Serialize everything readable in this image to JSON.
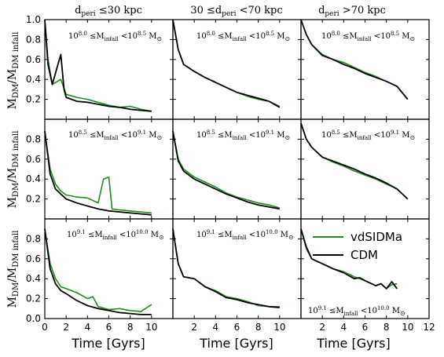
{
  "chart_data": {
    "type": "line",
    "layout": "3x3 grid of panels with shared axes",
    "colors": {
      "vdSIDMa": "#1e8c1e",
      "CDM": "#000000"
    },
    "column_titles": [
      "d_peri ≤30 kpc",
      "30 ≤d_peri <70 kpc",
      "d_peri >70 kpc"
    ],
    "row_ylabels": [
      "M_DM/M_DM infall",
      "M_DM/M_DM infall",
      "M_DM/M_DM infall"
    ],
    "row_annotations": [
      "10^8.0 ≤M_infall <10^8.5 M_⊙",
      "10^8.5 ≤M_infall <10^9.1 M_⊙",
      "10^9.1 ≤M_infall <10^10.0 M_⊙"
    ],
    "xlabel": "Time [Gyrs]",
    "xlim": [
      0,
      12
    ],
    "ylim": [
      0,
      1.0
    ],
    "grid": false,
    "x_ticks": {
      "col0": [
        "0",
        "2",
        "4",
        "6",
        "8",
        "10"
      ],
      "col1": [
        "2",
        "4",
        "6",
        "8",
        "10"
      ],
      "col2": [
        "2",
        "4",
        "6",
        "8",
        "10",
        "12"
      ]
    },
    "y_ticks": {
      "row0": [
        "0.2",
        "0.4",
        "0.6",
        "0.8",
        "1.0"
      ],
      "row1": [
        "0.2",
        "0.4",
        "0.6",
        "0.8"
      ],
      "row2": [
        "0.0",
        "0.2",
        "0.4",
        "0.6",
        "0.8"
      ]
    },
    "legend": {
      "location": "bottom-right panel, upper-left",
      "entries": [
        "vdSIDMa",
        "CDM"
      ]
    },
    "panels": [
      {
        "row": 0,
        "col": 0,
        "series": [
          {
            "name": "vdSIDMa",
            "x": [
              0,
              0.3,
              0.7,
              1.5,
              2,
              3,
              4,
              5,
              6,
              7,
              8,
              9,
              10
            ],
            "y": [
              1.0,
              0.6,
              0.35,
              0.4,
              0.25,
              0.22,
              0.2,
              0.17,
              0.14,
              0.12,
              0.13,
              0.1,
              0.08
            ]
          },
          {
            "name": "CDM",
            "x": [
              0,
              0.3,
              0.7,
              1.5,
              1.8,
              2,
              3,
              4,
              5,
              6,
              7,
              8,
              9,
              10
            ],
            "y": [
              1.0,
              0.55,
              0.35,
              0.65,
              0.3,
              0.22,
              0.18,
              0.17,
              0.15,
              0.13,
              0.12,
              0.1,
              0.09,
              0.08
            ]
          }
        ]
      },
      {
        "row": 0,
        "col": 1,
        "series": [
          {
            "name": "vdSIDMa",
            "x": [
              0,
              0.5,
              1,
              2,
              3,
              4,
              5,
              6,
              7,
              8,
              9,
              10
            ],
            "y": [
              1.0,
              0.7,
              0.55,
              0.48,
              0.42,
              0.37,
              0.32,
              0.27,
              0.23,
              0.2,
              0.18,
              0.13
            ]
          },
          {
            "name": "CDM",
            "x": [
              0,
              0.5,
              1,
              2,
              3,
              4,
              5,
              6,
              7,
              8,
              9,
              10
            ],
            "y": [
              1.0,
              0.7,
              0.55,
              0.48,
              0.42,
              0.37,
              0.32,
              0.27,
              0.24,
              0.21,
              0.18,
              0.12
            ]
          }
        ]
      },
      {
        "row": 0,
        "col": 2,
        "series": [
          {
            "name": "vdSIDMa",
            "x": [
              0,
              0.5,
              1,
              2,
              3,
              4,
              5,
              6,
              7,
              8,
              9,
              10
            ],
            "y": [
              1.0,
              0.85,
              0.75,
              0.65,
              0.6,
              0.57,
              0.52,
              0.47,
              0.43,
              0.38,
              0.33,
              0.2
            ]
          },
          {
            "name": "CDM",
            "x": [
              0,
              0.5,
              1,
              2,
              3,
              4,
              5,
              6,
              7,
              8,
              9,
              10
            ],
            "y": [
              1.0,
              0.85,
              0.75,
              0.64,
              0.6,
              0.55,
              0.51,
              0.46,
              0.42,
              0.38,
              0.33,
              0.2
            ]
          }
        ]
      },
      {
        "row": 1,
        "col": 0,
        "series": [
          {
            "name": "vdSIDMa",
            "x": [
              0,
              0.5,
              1,
              1.5,
              2,
              3,
              4,
              5,
              5.5,
              6,
              6.3,
              7,
              8,
              9,
              10
            ],
            "y": [
              0.88,
              0.5,
              0.35,
              0.28,
              0.24,
              0.22,
              0.21,
              0.16,
              0.4,
              0.42,
              0.1,
              0.09,
              0.08,
              0.07,
              0.06
            ]
          },
          {
            "name": "CDM",
            "x": [
              0,
              0.5,
              1,
              1.5,
              2,
              3,
              4,
              5,
              6,
              7,
              8,
              9,
              10
            ],
            "y": [
              0.88,
              0.45,
              0.3,
              0.25,
              0.2,
              0.16,
              0.13,
              0.1,
              0.08,
              0.07,
              0.06,
              0.05,
              0.04
            ]
          }
        ]
      },
      {
        "row": 1,
        "col": 1,
        "series": [
          {
            "name": "vdSIDMa",
            "x": [
              0,
              0.5,
              1,
              2,
              3,
              4,
              5,
              6,
              7,
              8,
              9,
              10
            ],
            "y": [
              0.88,
              0.6,
              0.5,
              0.42,
              0.37,
              0.32,
              0.26,
              0.22,
              0.19,
              0.16,
              0.14,
              0.11
            ]
          },
          {
            "name": "CDM",
            "x": [
              0,
              0.5,
              1,
              2,
              3,
              4,
              5,
              6,
              7,
              8,
              9,
              10
            ],
            "y": [
              0.88,
              0.58,
              0.48,
              0.4,
              0.35,
              0.3,
              0.25,
              0.21,
              0.17,
              0.14,
              0.12,
              0.1
            ]
          }
        ]
      },
      {
        "row": 1,
        "col": 2,
        "series": [
          {
            "name": "vdSIDMa",
            "x": [
              0,
              0.5,
              1,
              2,
              3,
              4,
              5,
              6,
              7,
              8,
              9,
              10
            ],
            "y": [
              0.96,
              0.8,
              0.72,
              0.62,
              0.57,
              0.53,
              0.48,
              0.44,
              0.4,
              0.35,
              0.3,
              0.2
            ]
          },
          {
            "name": "CDM",
            "x": [
              0,
              0.5,
              1,
              2,
              3,
              4,
              5,
              6,
              7,
              8,
              9,
              10
            ],
            "y": [
              0.96,
              0.8,
              0.72,
              0.62,
              0.58,
              0.54,
              0.5,
              0.45,
              0.41,
              0.36,
              0.3,
              0.2
            ]
          }
        ]
      },
      {
        "row": 2,
        "col": 0,
        "series": [
          {
            "name": "vdSIDMa",
            "x": [
              0,
              0.5,
              1,
              1.5,
              2,
              3,
              4,
              4.5,
              5,
              6,
              7,
              8,
              9,
              10
            ],
            "y": [
              0.9,
              0.55,
              0.4,
              0.32,
              0.3,
              0.26,
              0.2,
              0.22,
              0.12,
              0.09,
              0.1,
              0.08,
              0.07,
              0.14
            ]
          },
          {
            "name": "CDM",
            "x": [
              0,
              0.5,
              1,
              1.5,
              2,
              3,
              4,
              5,
              6,
              7,
              8,
              9,
              10
            ],
            "y": [
              0.9,
              0.5,
              0.35,
              0.28,
              0.25,
              0.18,
              0.13,
              0.1,
              0.08,
              0.06,
              0.05,
              0.04,
              0.04
            ]
          }
        ]
      },
      {
        "row": 2,
        "col": 1,
        "series": [
          {
            "name": "vdSIDMa",
            "x": [
              0,
              0.5,
              1,
              2,
              3,
              4,
              5,
              6,
              7,
              8,
              9,
              10
            ],
            "y": [
              0.9,
              0.55,
              0.42,
              0.4,
              0.32,
              0.28,
              0.22,
              0.2,
              0.17,
              0.13,
              0.12,
              0.12
            ]
          },
          {
            "name": "CDM",
            "x": [
              0,
              0.5,
              1,
              2,
              3,
              4,
              5,
              6,
              7,
              8,
              9,
              10
            ],
            "y": [
              0.9,
              0.55,
              0.42,
              0.4,
              0.32,
              0.27,
              0.21,
              0.19,
              0.16,
              0.14,
              0.12,
              0.11
            ]
          }
        ]
      },
      {
        "row": 2,
        "col": 2,
        "series": [
          {
            "name": "vdSIDMa",
            "x": [
              0,
              0.5,
              1,
              2,
              3,
              4,
              5,
              6,
              7,
              7.5,
              8,
              8.5,
              9
            ],
            "y": [
              0.9,
              0.7,
              0.6,
              0.55,
              0.5,
              0.47,
              0.42,
              0.38,
              0.33,
              0.35,
              0.3,
              0.34,
              0.35
            ]
          },
          {
            "name": "CDM",
            "x": [
              0,
              0.5,
              1,
              2,
              3,
              4,
              5,
              5.5,
              6,
              7,
              7.5,
              8,
              8.5,
              9
            ],
            "y": [
              0.9,
              0.72,
              0.6,
              0.55,
              0.5,
              0.46,
              0.4,
              0.41,
              0.38,
              0.33,
              0.35,
              0.3,
              0.37,
              0.3
            ]
          }
        ]
      }
    ]
  }
}
